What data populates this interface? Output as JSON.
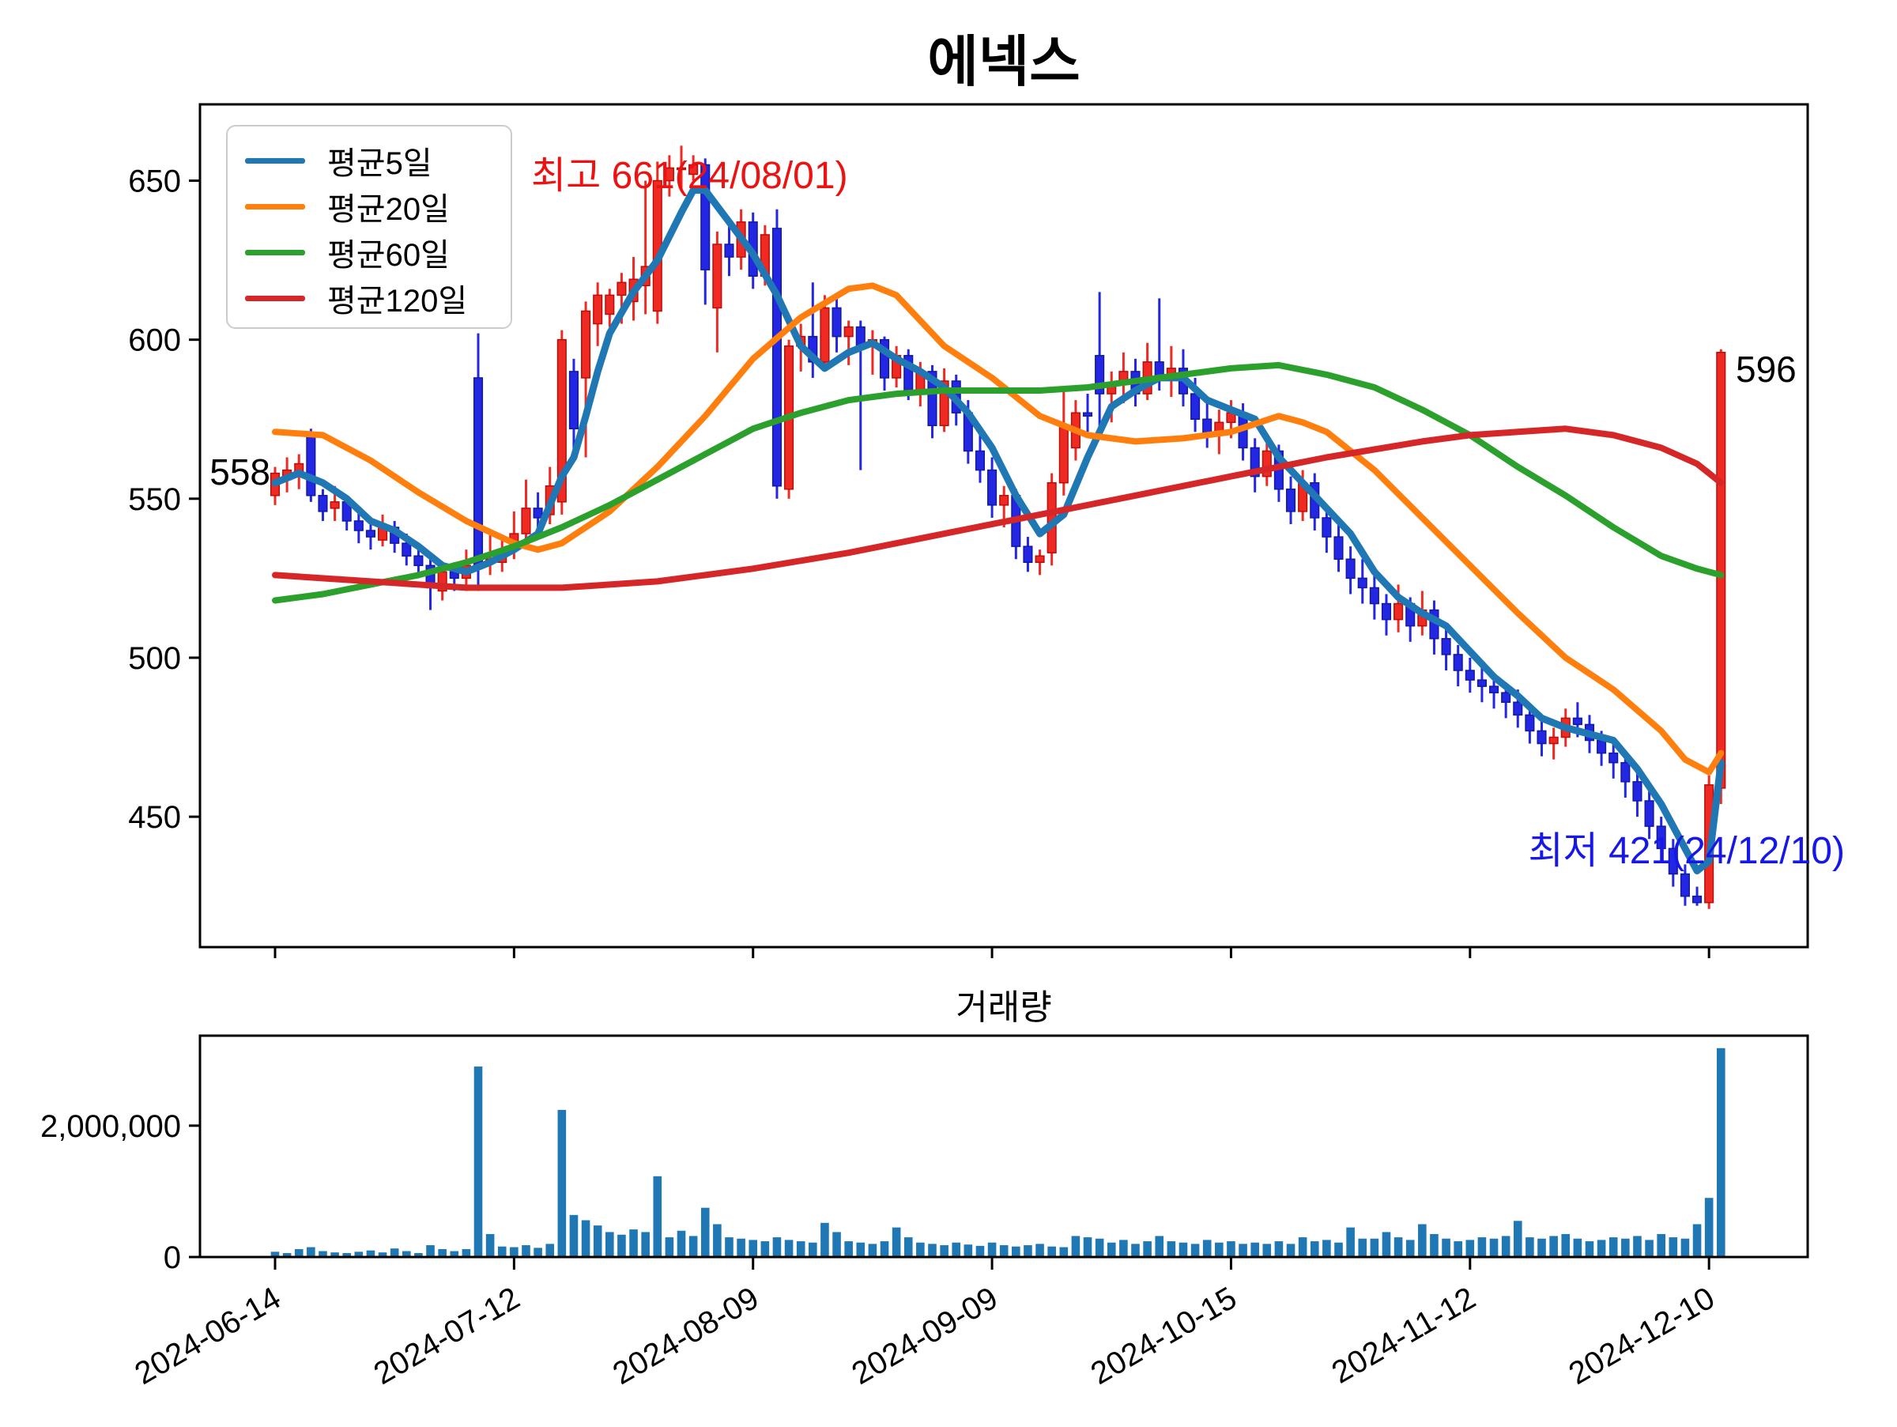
{
  "title": "에넥스",
  "volume_title": "거래량",
  "legend": {
    "items": [
      {
        "label": "평균5일",
        "color": "#1f77b4"
      },
      {
        "label": "평균20일",
        "color": "#ff7f0e"
      },
      {
        "label": "평균60일",
        "color": "#2ca02c"
      },
      {
        "label": "평균120일",
        "color": "#d62728"
      }
    ]
  },
  "annotations": {
    "high": "최고 661(24/08/01)",
    "low": "최저 421(24/12/10)",
    "first_close": "558",
    "last_close": "596"
  },
  "colors": {
    "up": "#ee2a22",
    "up_edge": "#b80f0a",
    "down": "#2327e3",
    "down_edge": "#131a9e",
    "volume_bar": "#1f77b4",
    "ma5": "#1f77b4",
    "ma20": "#ff7f0e",
    "ma60": "#2ca02c",
    "ma120": "#d62728",
    "high_label": "#ee1111",
    "low_label": "#1717e8",
    "axis": "#000000"
  },
  "chart_data": {
    "type": "candlestick+volume",
    "title": "에넥스",
    "volume_title": "거래량",
    "x_tick_labels": [
      "2024-06-14",
      "2024-07-12",
      "2024-08-09",
      "2024-09-09",
      "2024-10-15",
      "2024-11-12",
      "2024-12-10"
    ],
    "x_tick_indices": [
      0,
      20,
      40,
      60,
      80,
      100,
      120
    ],
    "price_ticks": [
      650,
      600,
      550,
      500,
      450
    ],
    "price_ylim": [
      409,
      674
    ],
    "volume_ticks": [
      2000000,
      0
    ],
    "volume_tick_labels": [
      "2,000,000",
      "0"
    ],
    "volume_ylim": [
      0,
      3370000
    ],
    "high_point": {
      "index": 34,
      "price": 661,
      "label": "최고 661(24/08/01)"
    },
    "low_point": {
      "index": 120,
      "price": 421,
      "label": "최저 421(24/12/10)"
    },
    "first_close": 558,
    "last_close": 596,
    "candles": [
      [
        551,
        560,
        548,
        558
      ],
      [
        556,
        563,
        552,
        559
      ],
      [
        557,
        564,
        553,
        561
      ],
      [
        570,
        572,
        549,
        551
      ],
      [
        551,
        553,
        543,
        546
      ],
      [
        547,
        554,
        543,
        549
      ],
      [
        549,
        551,
        540,
        543
      ],
      [
        543,
        546,
        536,
        540
      ],
      [
        540,
        543,
        534,
        538
      ],
      [
        537,
        545,
        535,
        541
      ],
      [
        541,
        543,
        533,
        536
      ],
      [
        536,
        539,
        529,
        532
      ],
      [
        532,
        535,
        525,
        529
      ],
      [
        529,
        531,
        515,
        522
      ],
      [
        521,
        529,
        518,
        527
      ],
      [
        527,
        530,
        521,
        525
      ],
      [
        525,
        534,
        521,
        529
      ],
      [
        588,
        602,
        521,
        529
      ],
      [
        531,
        540,
        526,
        531
      ],
      [
        530,
        538,
        527,
        534
      ],
      [
        534,
        546,
        531,
        539
      ],
      [
        539,
        556,
        537,
        547
      ],
      [
        547,
        552,
        540,
        544
      ],
      [
        545,
        560,
        542,
        554
      ],
      [
        549,
        603,
        545,
        600
      ],
      [
        590,
        594,
        562,
        572
      ],
      [
        588,
        612,
        563,
        609
      ],
      [
        605,
        618,
        598,
        614
      ],
      [
        608,
        616,
        604,
        614
      ],
      [
        614,
        621,
        605,
        618
      ],
      [
        612,
        626,
        606,
        619
      ],
      [
        617,
        650,
        608,
        623
      ],
      [
        609,
        656,
        605,
        650
      ],
      [
        650,
        658,
        645,
        654
      ],
      [
        654,
        661,
        647,
        654
      ],
      [
        652,
        658,
        650,
        655
      ],
      [
        655,
        657,
        611,
        622
      ],
      [
        610,
        634,
        596,
        630
      ],
      [
        630,
        638,
        620,
        626
      ],
      [
        626,
        641,
        622,
        637
      ],
      [
        637,
        640,
        616,
        620
      ],
      [
        620,
        636,
        617,
        633
      ],
      [
        635,
        641,
        550,
        554
      ],
      [
        553,
        600,
        550,
        598
      ],
      [
        598,
        605,
        590,
        601
      ],
      [
        601,
        618,
        588,
        593
      ],
      [
        593,
        614,
        590,
        610
      ],
      [
        610,
        613,
        596,
        601
      ],
      [
        601,
        606,
        592,
        604
      ],
      [
        604,
        606,
        559,
        598
      ],
      [
        598,
        603,
        589,
        600
      ],
      [
        600,
        601,
        584,
        588
      ],
      [
        588,
        598,
        585,
        595
      ],
      [
        595,
        597,
        581,
        584
      ],
      [
        584,
        593,
        579,
        590
      ],
      [
        590,
        592,
        569,
        573
      ],
      [
        573,
        591,
        571,
        587
      ],
      [
        587,
        589,
        573,
        577
      ],
      [
        577,
        581,
        561,
        565
      ],
      [
        565,
        571,
        555,
        559
      ],
      [
        559,
        563,
        544,
        548
      ],
      [
        548,
        554,
        541,
        551
      ],
      [
        551,
        553,
        531,
        535
      ],
      [
        535,
        538,
        527,
        530
      ],
      [
        530,
        534,
        526,
        532
      ],
      [
        533,
        558,
        529,
        555
      ],
      [
        555,
        585,
        551,
        573
      ],
      [
        566,
        581,
        562,
        577
      ],
      [
        577,
        583,
        571,
        576
      ],
      [
        595,
        615,
        570,
        583
      ],
      [
        583,
        590,
        574,
        586
      ],
      [
        586,
        596,
        580,
        590
      ],
      [
        590,
        594,
        579,
        583
      ],
      [
        583,
        599,
        581,
        593
      ],
      [
        593,
        613,
        584,
        588
      ],
      [
        588,
        598,
        582,
        591
      ],
      [
        591,
        597,
        579,
        583
      ],
      [
        583,
        588,
        571,
        575
      ],
      [
        575,
        581,
        566,
        570
      ],
      [
        570,
        578,
        564,
        574
      ],
      [
        574,
        581,
        569,
        577
      ],
      [
        577,
        580,
        562,
        566
      ],
      [
        566,
        569,
        552,
        557
      ],
      [
        557,
        570,
        554,
        565
      ],
      [
        565,
        567,
        549,
        553
      ],
      [
        553,
        557,
        542,
        546
      ],
      [
        546,
        559,
        543,
        555
      ],
      [
        555,
        558,
        540,
        544
      ],
      [
        544,
        548,
        533,
        538
      ],
      [
        538,
        542,
        527,
        531
      ],
      [
        531,
        535,
        520,
        525
      ],
      [
        525,
        531,
        517,
        522
      ],
      [
        522,
        526,
        512,
        517
      ],
      [
        517,
        520,
        507,
        512
      ],
      [
        512,
        523,
        508,
        517
      ],
      [
        517,
        519,
        505,
        510
      ],
      [
        510,
        521,
        507,
        515
      ],
      [
        515,
        518,
        501,
        506
      ],
      [
        506,
        509,
        496,
        501
      ],
      [
        501,
        504,
        491,
        496
      ],
      [
        496,
        500,
        489,
        493
      ],
      [
        493,
        498,
        486,
        491
      ],
      [
        491,
        495,
        484,
        489
      ],
      [
        489,
        492,
        481,
        486
      ],
      [
        486,
        490,
        478,
        482
      ],
      [
        482,
        485,
        473,
        477
      ],
      [
        477,
        481,
        469,
        473
      ],
      [
        473,
        478,
        468,
        475
      ],
      [
        475,
        484,
        472,
        481
      ],
      [
        481,
        486,
        475,
        479
      ],
      [
        479,
        482,
        470,
        474
      ],
      [
        474,
        477,
        466,
        470
      ],
      [
        470,
        473,
        462,
        467
      ],
      [
        467,
        469,
        456,
        461
      ],
      [
        461,
        464,
        450,
        455
      ],
      [
        455,
        458,
        443,
        447
      ],
      [
        447,
        450,
        436,
        440
      ],
      [
        440,
        443,
        428,
        432
      ],
      [
        432,
        435,
        422,
        425
      ],
      [
        425,
        428,
        422,
        423
      ],
      [
        423,
        463,
        421,
        460
      ],
      [
        459,
        597,
        454,
        596
      ]
    ],
    "volumes": [
      80000,
      60000,
      120000,
      150000,
      90000,
      70000,
      60000,
      80000,
      100000,
      70000,
      130000,
      90000,
      60000,
      180000,
      120000,
      90000,
      120000,
      2900000,
      350000,
      160000,
      150000,
      180000,
      140000,
      200000,
      2240000,
      640000,
      560000,
      480000,
      380000,
      340000,
      420000,
      380000,
      1230000,
      300000,
      400000,
      320000,
      750000,
      500000,
      300000,
      280000,
      260000,
      240000,
      300000,
      260000,
      240000,
      220000,
      520000,
      380000,
      240000,
      220000,
      200000,
      240000,
      450000,
      300000,
      220000,
      200000,
      180000,
      220000,
      190000,
      170000,
      220000,
      180000,
      160000,
      180000,
      200000,
      160000,
      150000,
      320000,
      300000,
      280000,
      220000,
      260000,
      200000,
      240000,
      320000,
      240000,
      220000,
      200000,
      260000,
      220000,
      240000,
      200000,
      220000,
      200000,
      240000,
      200000,
      300000,
      240000,
      260000,
      220000,
      450000,
      280000,
      280000,
      380000,
      300000,
      260000,
      500000,
      350000,
      280000,
      240000,
      260000,
      300000,
      280000,
      320000,
      550000,
      300000,
      280000,
      320000,
      350000,
      280000,
      240000,
      260000,
      300000,
      280000,
      320000,
      260000,
      350000,
      300000,
      280000,
      500000,
      900000,
      3180000
    ],
    "ma5": [
      [
        0,
        555
      ],
      [
        2,
        558
      ],
      [
        4,
        555
      ],
      [
        6,
        550
      ],
      [
        8,
        543
      ],
      [
        10,
        540
      ],
      [
        12,
        535
      ],
      [
        14,
        529
      ],
      [
        16,
        527
      ],
      [
        18,
        530
      ],
      [
        20,
        534
      ],
      [
        22,
        539
      ],
      [
        24,
        557
      ],
      [
        25,
        563
      ],
      [
        26,
        576
      ],
      [
        27,
        590
      ],
      [
        28,
        602
      ],
      [
        30,
        615
      ],
      [
        32,
        625
      ],
      [
        34,
        640
      ],
      [
        35,
        647
      ],
      [
        36,
        647
      ],
      [
        38,
        637
      ],
      [
        40,
        627
      ],
      [
        42,
        614
      ],
      [
        44,
        598
      ],
      [
        46,
        591
      ],
      [
        48,
        596
      ],
      [
        50,
        599
      ],
      [
        52,
        594
      ],
      [
        54,
        590
      ],
      [
        56,
        585
      ],
      [
        58,
        577
      ],
      [
        60,
        566
      ],
      [
        62,
        551
      ],
      [
        64,
        539
      ],
      [
        66,
        545
      ],
      [
        68,
        563
      ],
      [
        70,
        579
      ],
      [
        72,
        584
      ],
      [
        74,
        588
      ],
      [
        76,
        588
      ],
      [
        78,
        581
      ],
      [
        80,
        578
      ],
      [
        82,
        575
      ],
      [
        84,
        563
      ],
      [
        86,
        555
      ],
      [
        88,
        547
      ],
      [
        90,
        539
      ],
      [
        92,
        527
      ],
      [
        94,
        519
      ],
      [
        96,
        514
      ],
      [
        98,
        510
      ],
      [
        100,
        502
      ],
      [
        102,
        494
      ],
      [
        104,
        488
      ],
      [
        106,
        481
      ],
      [
        108,
        478
      ],
      [
        110,
        476
      ],
      [
        112,
        474
      ],
      [
        114,
        465
      ],
      [
        116,
        454
      ],
      [
        118,
        440
      ],
      [
        119,
        433
      ],
      [
        120,
        436
      ],
      [
        121,
        467
      ]
    ],
    "ma20": [
      [
        0,
        571
      ],
      [
        4,
        570
      ],
      [
        8,
        562
      ],
      [
        12,
        552
      ],
      [
        16,
        543
      ],
      [
        20,
        536
      ],
      [
        22,
        534
      ],
      [
        24,
        536
      ],
      [
        28,
        546
      ],
      [
        32,
        560
      ],
      [
        36,
        576
      ],
      [
        40,
        594
      ],
      [
        44,
        607
      ],
      [
        48,
        616
      ],
      [
        50,
        617
      ],
      [
        52,
        614
      ],
      [
        56,
        598
      ],
      [
        60,
        588
      ],
      [
        64,
        576
      ],
      [
        68,
        570
      ],
      [
        72,
        568
      ],
      [
        76,
        569
      ],
      [
        80,
        571
      ],
      [
        84,
        576
      ],
      [
        86,
        574
      ],
      [
        88,
        571
      ],
      [
        92,
        559
      ],
      [
        96,
        544
      ],
      [
        100,
        529
      ],
      [
        104,
        514
      ],
      [
        108,
        500
      ],
      [
        112,
        490
      ],
      [
        116,
        477
      ],
      [
        118,
        468
      ],
      [
        120,
        464
      ],
      [
        121,
        470
      ]
    ],
    "ma60": [
      [
        0,
        518
      ],
      [
        4,
        520
      ],
      [
        8,
        523
      ],
      [
        12,
        526
      ],
      [
        16,
        530
      ],
      [
        20,
        535
      ],
      [
        24,
        541
      ],
      [
        28,
        548
      ],
      [
        32,
        556
      ],
      [
        36,
        564
      ],
      [
        40,
        572
      ],
      [
        44,
        577
      ],
      [
        48,
        581
      ],
      [
        52,
        583
      ],
      [
        56,
        584
      ],
      [
        60,
        584
      ],
      [
        64,
        584
      ],
      [
        68,
        585
      ],
      [
        72,
        587
      ],
      [
        76,
        589
      ],
      [
        80,
        591
      ],
      [
        84,
        592
      ],
      [
        88,
        589
      ],
      [
        92,
        585
      ],
      [
        96,
        578
      ],
      [
        100,
        570
      ],
      [
        104,
        560
      ],
      [
        108,
        551
      ],
      [
        112,
        541
      ],
      [
        116,
        532
      ],
      [
        119,
        528
      ],
      [
        121,
        526
      ]
    ],
    "ma120": [
      [
        0,
        526
      ],
      [
        8,
        524
      ],
      [
        16,
        522
      ],
      [
        24,
        522
      ],
      [
        32,
        524
      ],
      [
        40,
        528
      ],
      [
        48,
        533
      ],
      [
        56,
        539
      ],
      [
        64,
        545
      ],
      [
        72,
        551
      ],
      [
        80,
        557
      ],
      [
        88,
        563
      ],
      [
        96,
        568
      ],
      [
        100,
        570
      ],
      [
        104,
        571
      ],
      [
        108,
        572
      ],
      [
        112,
        570
      ],
      [
        116,
        566
      ],
      [
        119,
        561
      ],
      [
        121,
        555
      ]
    ]
  }
}
